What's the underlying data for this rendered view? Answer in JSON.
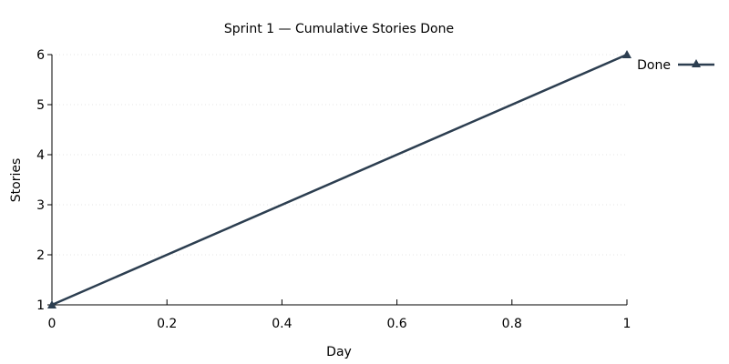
{
  "chart_data": {
    "type": "line",
    "title": "Sprint 1 — Cumulative Stories Done",
    "xlabel": "Day",
    "ylabel": "Stories",
    "xlim": [
      0,
      1
    ],
    "ylim": [
      1,
      6
    ],
    "xticks": [
      0,
      0.2,
      0.4,
      0.6,
      0.8,
      1
    ],
    "xtick_labels": [
      "0",
      "0.2",
      "0.4",
      "0.6",
      "0.8",
      "1"
    ],
    "yticks": [
      1,
      2,
      3,
      4,
      5,
      6
    ],
    "ytick_labels": [
      "1",
      "2",
      "3",
      "4",
      "5",
      "6"
    ],
    "grid": true,
    "legend": {
      "position": "top-right"
    },
    "series": [
      {
        "name": "Done",
        "color": "#2c3e50",
        "marker": "triangle",
        "x": [
          0,
          1
        ],
        "y": [
          1,
          6
        ]
      }
    ]
  }
}
